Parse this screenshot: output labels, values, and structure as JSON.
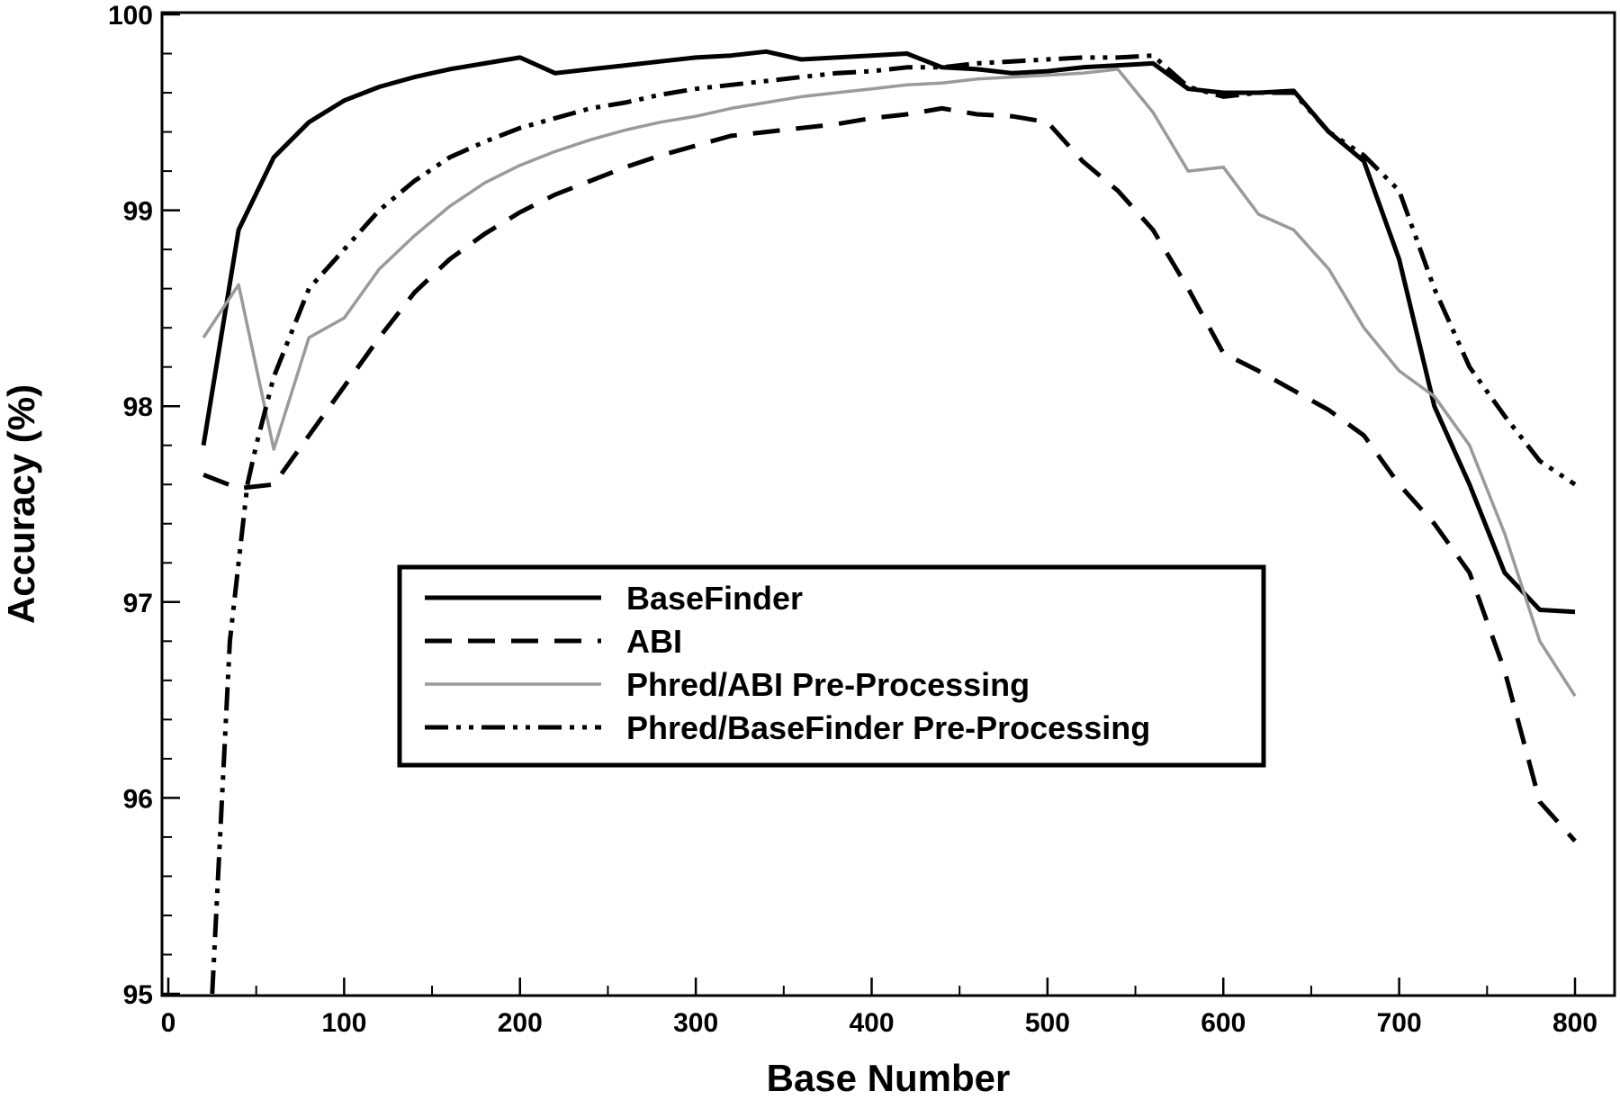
{
  "chart_data": {
    "type": "line",
    "title": "",
    "xlabel": "Base Number",
    "ylabel": "Accuracy (%)",
    "xlim": [
      0,
      820
    ],
    "ylim": [
      95,
      100
    ],
    "xticks": [
      0,
      100,
      200,
      300,
      400,
      500,
      600,
      700,
      800
    ],
    "yticks": [
      95,
      96,
      97,
      98,
      99,
      100
    ],
    "grid": false,
    "legend_position": "center",
    "series": [
      {
        "name": "BaseFinder",
        "style": "solid",
        "color": "#000000",
        "x": [
          20,
          40,
          60,
          80,
          100,
          120,
          140,
          160,
          180,
          200,
          220,
          240,
          260,
          280,
          300,
          320,
          340,
          360,
          380,
          400,
          420,
          440,
          460,
          480,
          500,
          520,
          540,
          560,
          580,
          600,
          620,
          640,
          660,
          680,
          700,
          720,
          740,
          760,
          780,
          800
        ],
        "y": [
          97.8,
          98.9,
          99.27,
          99.45,
          99.56,
          99.63,
          99.68,
          99.72,
          99.75,
          99.78,
          99.7,
          99.72,
          99.74,
          99.76,
          99.78,
          99.79,
          99.81,
          99.77,
          99.78,
          99.79,
          99.8,
          99.73,
          99.72,
          99.7,
          99.71,
          99.73,
          99.74,
          99.75,
          99.62,
          99.6,
          99.6,
          99.61,
          99.4,
          99.25,
          98.75,
          98.0,
          97.6,
          97.15,
          96.96,
          96.95
        ]
      },
      {
        "name": "ABI",
        "style": "dashed",
        "color": "#000000",
        "x": [
          20,
          40,
          60,
          80,
          100,
          120,
          140,
          160,
          180,
          200,
          220,
          240,
          260,
          280,
          300,
          320,
          340,
          360,
          380,
          400,
          420,
          440,
          460,
          480,
          500,
          520,
          540,
          560,
          580,
          600,
          620,
          640,
          660,
          680,
          700,
          720,
          740,
          760,
          780,
          800
        ],
        "y": [
          97.65,
          97.58,
          97.6,
          97.85,
          98.1,
          98.35,
          98.58,
          98.75,
          98.88,
          98.99,
          99.08,
          99.15,
          99.22,
          99.28,
          99.33,
          99.38,
          99.4,
          99.42,
          99.44,
          99.47,
          99.49,
          99.52,
          99.49,
          99.48,
          99.45,
          99.25,
          99.1,
          98.9,
          98.6,
          98.27,
          98.18,
          98.08,
          97.98,
          97.85,
          97.6,
          97.4,
          97.15,
          96.65,
          95.98,
          95.78
        ]
      },
      {
        "name": "Phred/ABI Pre-Processing",
        "style": "gray",
        "color": "#9a9a9a",
        "x": [
          20,
          40,
          60,
          80,
          100,
          120,
          140,
          160,
          180,
          200,
          220,
          240,
          260,
          280,
          300,
          320,
          340,
          360,
          380,
          400,
          420,
          440,
          460,
          480,
          500,
          520,
          540,
          560,
          580,
          600,
          620,
          640,
          660,
          680,
          700,
          720,
          740,
          760,
          780,
          800
        ],
        "y": [
          98.35,
          98.62,
          97.78,
          98.35,
          98.45,
          98.7,
          98.87,
          99.02,
          99.14,
          99.23,
          99.3,
          99.36,
          99.41,
          99.45,
          99.48,
          99.52,
          99.55,
          99.58,
          99.6,
          99.62,
          99.64,
          99.65,
          99.67,
          99.68,
          99.69,
          99.7,
          99.72,
          99.5,
          99.2,
          99.22,
          98.98,
          98.9,
          98.7,
          98.4,
          98.18,
          98.05,
          97.8,
          97.35,
          96.8,
          96.52
        ]
      },
      {
        "name": "Phred/BaseFinder Pre-Processing",
        "style": "dashdotdot",
        "color": "#000000",
        "x": [
          25,
          30,
          35,
          40,
          45,
          50,
          60,
          80,
          100,
          120,
          140,
          160,
          180,
          200,
          220,
          240,
          260,
          280,
          300,
          320,
          340,
          360,
          380,
          400,
          420,
          440,
          460,
          480,
          500,
          520,
          540,
          560,
          580,
          600,
          620,
          640,
          660,
          680,
          700,
          720,
          740,
          760,
          780,
          800
        ],
        "y": [
          95.0,
          95.9,
          96.8,
          97.2,
          97.6,
          97.8,
          98.15,
          98.6,
          98.8,
          99.0,
          99.15,
          99.27,
          99.35,
          99.42,
          99.47,
          99.52,
          99.55,
          99.59,
          99.62,
          99.64,
          99.66,
          99.68,
          99.7,
          99.71,
          99.73,
          99.73,
          99.75,
          99.76,
          99.77,
          99.78,
          99.78,
          99.79,
          99.63,
          99.58,
          99.6,
          99.6,
          99.4,
          99.28,
          99.1,
          98.6,
          98.2,
          97.95,
          97.72,
          97.6
        ]
      }
    ]
  }
}
